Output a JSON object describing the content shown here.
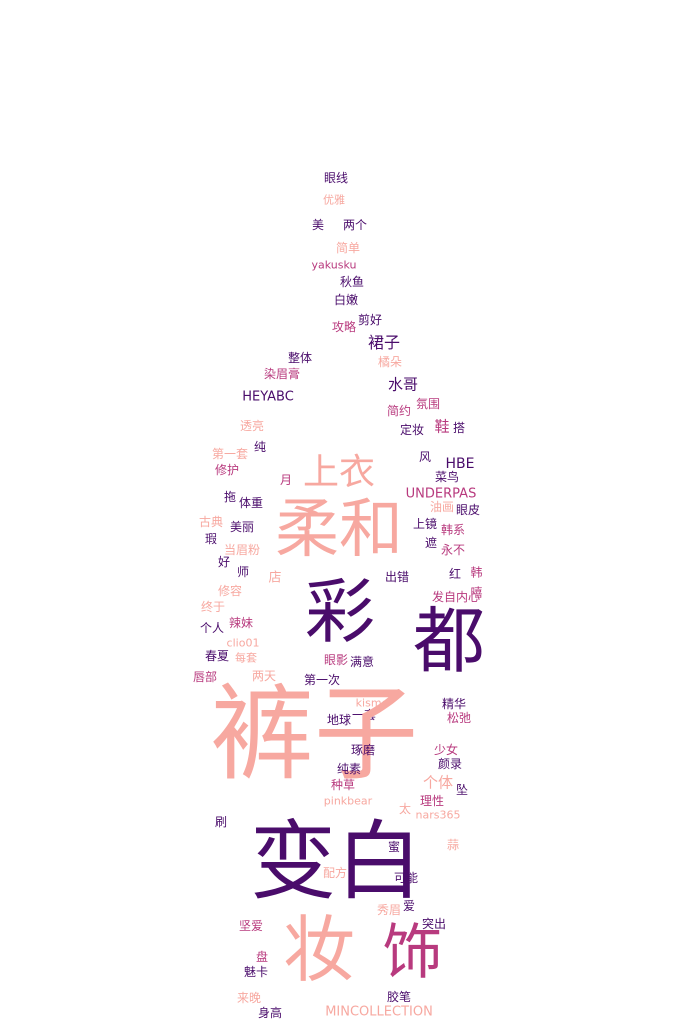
{
  "words": [
    {
      "text": "眼线",
      "c": "#4a0c6b"
    },
    {
      "text": "优雅",
      "c": "#f7a8a0"
    },
    {
      "text": "美",
      "c": "#4a0c6b"
    },
    {
      "text": "两个",
      "c": "#4a0c6b"
    },
    {
      "text": "简单",
      "c": "#f7a8a0"
    },
    {
      "text": "yakusku",
      "c": "#b83a7e"
    },
    {
      "text": "秋鱼",
      "c": "#4a0c6b"
    },
    {
      "text": "白嫩",
      "c": "#4a0c6b"
    },
    {
      "text": "攻略",
      "c": "#b83a7e"
    },
    {
      "text": "剪好",
      "c": "#4a0c6b"
    },
    {
      "text": "裙子",
      "c": "#4a0c6b"
    },
    {
      "text": "整体",
      "c": "#4a0c6b"
    },
    {
      "text": "橘朵",
      "c": "#f7a8a0"
    },
    {
      "text": "染眉膏",
      "c": "#b83a7e"
    },
    {
      "text": "水哥",
      "c": "#4a0c6b"
    },
    {
      "text": "HEYABC",
      "c": "#4a0c6b"
    },
    {
      "text": "氛围",
      "c": "#b83a7e"
    },
    {
      "text": "简约",
      "c": "#b83a7e"
    },
    {
      "text": "透亮",
      "c": "#f7a8a0"
    },
    {
      "text": "定妆",
      "c": "#4a0c6b"
    },
    {
      "text": "鞋",
      "c": "#b83a7e"
    },
    {
      "text": "搭",
      "c": "#4a0c6b"
    },
    {
      "text": "纯",
      "c": "#4a0c6b"
    },
    {
      "text": "第一套",
      "c": "#f7a8a0"
    },
    {
      "text": "风",
      "c": "#4a0c6b"
    },
    {
      "text": "HBE",
      "c": "#4a0c6b"
    },
    {
      "text": "修护",
      "c": "#b83a7e"
    },
    {
      "text": "上衣",
      "c": "#f7a8a0"
    },
    {
      "text": "菜鸟",
      "c": "#4a0c6b"
    },
    {
      "text": "月",
      "c": "#b83a7e"
    },
    {
      "text": "UNDERPAS",
      "c": "#b83a7e"
    },
    {
      "text": "拖",
      "c": "#4a0c6b"
    },
    {
      "text": "体重",
      "c": "#4a0c6b"
    },
    {
      "text": "油画",
      "c": "#f7a8a0"
    },
    {
      "text": "眼皮",
      "c": "#4a0c6b"
    },
    {
      "text": "柔和",
      "c": "#f7a8a0"
    },
    {
      "text": "古典",
      "c": "#f7a8a0"
    },
    {
      "text": "美丽",
      "c": "#4a0c6b"
    },
    {
      "text": "上镜",
      "c": "#4a0c6b"
    },
    {
      "text": "韩系",
      "c": "#b83a7e"
    },
    {
      "text": "瑕",
      "c": "#4a0c6b"
    },
    {
      "text": "遮",
      "c": "#4a0c6b"
    },
    {
      "text": "当眉粉",
      "c": "#f7a8a0"
    },
    {
      "text": "永不",
      "c": "#b83a7e"
    },
    {
      "text": "好",
      "c": "#4a0c6b"
    },
    {
      "text": "师",
      "c": "#4a0c6b"
    },
    {
      "text": "红",
      "c": "#4a0c6b"
    },
    {
      "text": "韩",
      "c": "#b83a7e"
    },
    {
      "text": "店",
      "c": "#f7a8a0"
    },
    {
      "text": "出错",
      "c": "#4a0c6b"
    },
    {
      "text": "嘻",
      "c": "#b83a7e"
    },
    {
      "text": "彩",
      "c": "#4a0c6b"
    },
    {
      "text": "修容",
      "c": "#f7a8a0"
    },
    {
      "text": "发自内心",
      "c": "#b83a7e"
    },
    {
      "text": "终于",
      "c": "#f7a8a0"
    },
    {
      "text": "辣妹",
      "c": "#b83a7e"
    },
    {
      "text": "都",
      "c": "#4a0c6b"
    },
    {
      "text": "个人",
      "c": "#4a0c6b"
    },
    {
      "text": "clio01",
      "c": "#f7a8a0"
    },
    {
      "text": "春夏",
      "c": "#4a0c6b"
    },
    {
      "text": "每套",
      "c": "#f7a8a0"
    },
    {
      "text": "眼影",
      "c": "#b83a7e"
    },
    {
      "text": "满意",
      "c": "#4a0c6b"
    },
    {
      "text": "唇部",
      "c": "#b83a7e"
    },
    {
      "text": "两天",
      "c": "#f7a8a0"
    },
    {
      "text": "第一次",
      "c": "#4a0c6b"
    },
    {
      "text": "kisme",
      "c": "#f7a8a0"
    },
    {
      "text": "精华",
      "c": "#4a0c6b"
    },
    {
      "text": "一套",
      "c": "#4a0c6b"
    },
    {
      "text": "地球",
      "c": "#4a0c6b"
    },
    {
      "text": "松弛",
      "c": "#b83a7e"
    },
    {
      "text": "裤子",
      "c": "#f7a8a0"
    },
    {
      "text": "琢磨",
      "c": "#4a0c6b"
    },
    {
      "text": "少女",
      "c": "#b83a7e"
    },
    {
      "text": "颜录",
      "c": "#4a0c6b"
    },
    {
      "text": "纯素",
      "c": "#4a0c6b"
    },
    {
      "text": "个体",
      "c": "#f7a8a0"
    },
    {
      "text": "种草",
      "c": "#b83a7e"
    },
    {
      "text": "坠",
      "c": "#4a0c6b"
    },
    {
      "text": "理性",
      "c": "#b83a7e"
    },
    {
      "text": "pinkbear",
      "c": "#f7a8a0"
    },
    {
      "text": "太",
      "c": "#f7a8a0"
    },
    {
      "text": "nars365",
      "c": "#f7a8a0"
    },
    {
      "text": "刷",
      "c": "#4a0c6b"
    },
    {
      "text": "蜜",
      "c": "#4a0c6b"
    },
    {
      "text": "蒜",
      "c": "#f7a8a0"
    },
    {
      "text": "变白",
      "c": "#4a0c6b"
    },
    {
      "text": "配方",
      "c": "#f7a8a0"
    },
    {
      "text": "可能",
      "c": "#4a0c6b"
    },
    {
      "text": "秀眉",
      "c": "#f7a8a0"
    },
    {
      "text": "爱",
      "c": "#4a0c6b"
    },
    {
      "text": "突出",
      "c": "#4a0c6b"
    },
    {
      "text": "坚爱",
      "c": "#b83a7e"
    },
    {
      "text": "妆",
      "c": "#f7a8a0"
    },
    {
      "text": "饰",
      "c": "#b83a7e"
    },
    {
      "text": "盘",
      "c": "#b83a7e"
    },
    {
      "text": "魅卡",
      "c": "#4a0c6b"
    },
    {
      "text": "来晚",
      "c": "#f7a8a0"
    },
    {
      "text": "胶笔",
      "c": "#4a0c6b"
    },
    {
      "text": "身高",
      "c": "#4a0c6b"
    },
    {
      "text": "MINCOLLECTION",
      "c": "#f7a8a0"
    }
  ]
}
